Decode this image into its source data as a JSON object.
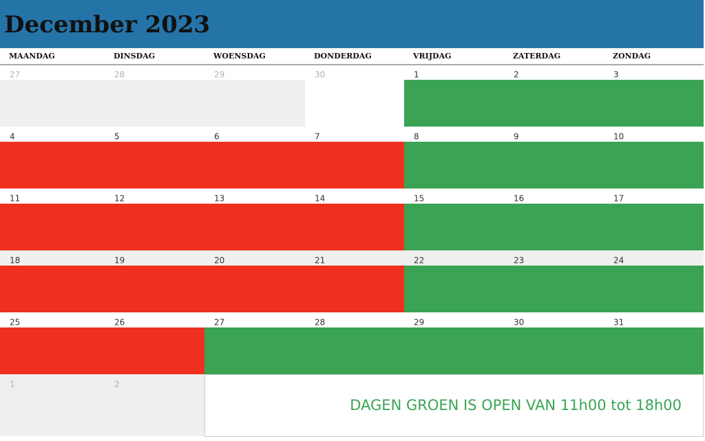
{
  "header": {
    "title": "December 2023"
  },
  "weekdays": [
    "MAANDAG",
    "DINSDAG",
    "WOENSDAG",
    "DONDERDAG",
    "VRIJDAG",
    "ZATERDAG",
    "ZONDAG"
  ],
  "weeks": [
    [
      27,
      28,
      29,
      30,
      1,
      2,
      3
    ],
    [
      4,
      5,
      6,
      7,
      8,
      9,
      10
    ],
    [
      11,
      12,
      13,
      14,
      15,
      16,
      17
    ],
    [
      18,
      19,
      20,
      21,
      22,
      23,
      24
    ],
    [
      25,
      26,
      27,
      28,
      29,
      30,
      31
    ],
    [
      1,
      2
    ]
  ],
  "note": "DAGEN GROEN IS OPEN VAN 11h00 tot 18h00"
}
